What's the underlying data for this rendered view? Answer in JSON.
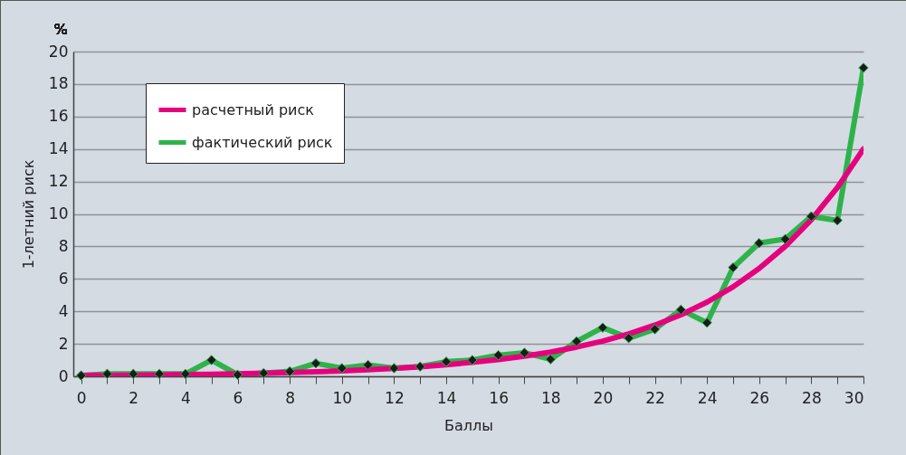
{
  "chart_data": {
    "type": "line",
    "xlabel": "Баллы",
    "ylabel": "1-летний риск",
    "annotations": [
      "%"
    ],
    "x": [
      0,
      1,
      2,
      3,
      4,
      5,
      6,
      7,
      8,
      9,
      10,
      11,
      12,
      13,
      14,
      15,
      16,
      17,
      18,
      19,
      20,
      21,
      22,
      23,
      24,
      25,
      26,
      27,
      28,
      29,
      30
    ],
    "series": [
      {
        "name": "расчетный риск",
        "color": "#e6007e",
        "marker": "none",
        "values": [
          0.05,
          0.06,
          0.07,
          0.09,
          0.11,
          0.13,
          0.16,
          0.19,
          0.23,
          0.28,
          0.34,
          0.41,
          0.49,
          0.59,
          0.71,
          0.86,
          1.03,
          1.24,
          1.49,
          1.8,
          2.17,
          2.61,
          3.15,
          3.79,
          4.57,
          5.51,
          6.64,
          8.0,
          9.64,
          11.62,
          14.0
        ]
      },
      {
        "name": "фактический риск",
        "color": "#2db34a",
        "marker": "diamond",
        "values": [
          0.05,
          0.15,
          0.15,
          0.15,
          0.15,
          1.0,
          0.1,
          0.2,
          0.3,
          0.8,
          0.5,
          0.7,
          0.5,
          0.6,
          0.9,
          1.0,
          1.3,
          1.45,
          1.05,
          2.15,
          3.0,
          2.35,
          2.9,
          4.1,
          3.3,
          6.7,
          8.2,
          8.45,
          9.85,
          9.6,
          19.0
        ]
      }
    ],
    "xlim": [
      -0.3,
      30
    ],
    "ylim": [
      0,
      20
    ],
    "xticks": [
      0,
      {
        "value": 1,
        "label": null
      },
      2,
      {
        "value": 3,
        "label": null
      },
      4,
      {
        "value": 5,
        "label": null
      },
      6,
      {
        "value": 7,
        "label": null
      },
      8,
      {
        "value": 9,
        "label": null
      },
      10,
      {
        "value": 11,
        "label": null
      },
      12,
      {
        "value": 13,
        "label": null
      },
      14,
      {
        "value": 15,
        "label": null
      },
      16,
      {
        "value": 17,
        "label": null
      },
      18,
      {
        "value": 19,
        "label": null
      },
      20,
      {
        "value": 21,
        "label": null
      },
      22,
      {
        "value": 23,
        "label": null
      },
      24,
      {
        "value": 25,
        "label": null
      },
      26,
      {
        "value": 27,
        "label": null
      },
      28,
      {
        "value": 29,
        "label": null
      },
      30
    ],
    "yticks": [
      0,
      2,
      4,
      6,
      8,
      10,
      12,
      14,
      16,
      18,
      20
    ],
    "grid": "y",
    "legend": "top left",
    "line_style": "solid"
  }
}
